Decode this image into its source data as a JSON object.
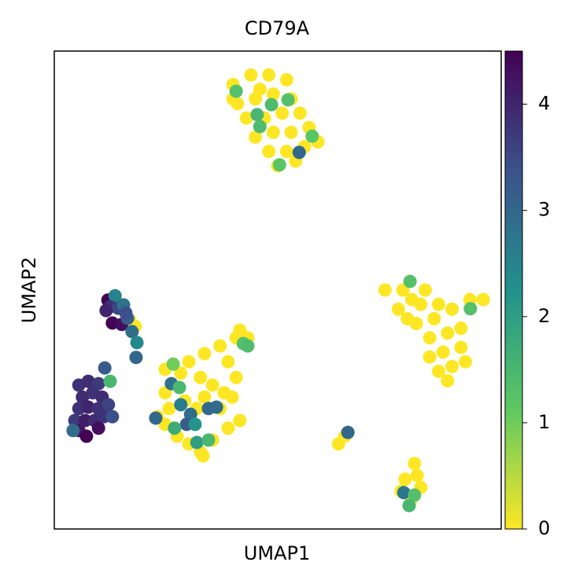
{
  "chart_data": {
    "type": "scatter",
    "title": "CD79A",
    "x_label": "UMAP1",
    "y_label": "UMAP2",
    "xlim": [
      0,
      100
    ],
    "ylim": [
      0,
      100
    ],
    "x": [
      40,
      44,
      48,
      52,
      41,
      45,
      49,
      53,
      43,
      47,
      51,
      55,
      45,
      49,
      53,
      57,
      48,
      52,
      56,
      59,
      50,
      54,
      40,
      46,
      74,
      78,
      82,
      77,
      81,
      85,
      89,
      93,
      96,
      84,
      88,
      87,
      91,
      84,
      89,
      92,
      86,
      80,
      83,
      79,
      86,
      91,
      88,
      18.1,
      16.9,
      24.8,
      30.1,
      33.6,
      37.1,
      40.7,
      43.3,
      38.9,
      40.7,
      38,
      35.4,
      32.7,
      28.3,
      24.8,
      25.7,
      24.8,
      27.5,
      30.1,
      32.7,
      35.4,
      38.9,
      41.5,
      37.1,
      31.9,
      29.2,
      33.6,
      39.8,
      23.1,
      41.5,
      33.3,
      63.6,
      65,
      78.5,
      81.2,
      82,
      79.9,
      77.6,
      80.6,
      40.7,
      45.4,
      48.6,
      52.3,
      46,
      57.7,
      54.8,
      50.4,
      79.6,
      93.1,
      42.3,
      43.3,
      26.6,
      26.2,
      28,
      22.7,
      28.3,
      30.5,
      29.6,
      26.9,
      31.5,
      31.9,
      34.5,
      36.3,
      34.5,
      65.7,
      78.2,
      80.6,
      79.4,
      12,
      13.6,
      12.5,
      14.3,
      15.5,
      13,
      15.1,
      16.4,
      17.4,
      18.5,
      18.3,
      16,
      11.6,
      5.5,
      7.6,
      9.9,
      6.3,
      8.6,
      10.7,
      5.5,
      7.6,
      9.9,
      12.1,
      4.6,
      6.9,
      9,
      11.1,
      5.5,
      4.2,
      9.9,
      13,
      7.2,
      11.3,
      12.5
    ],
    "y": [
      93,
      95,
      95,
      94,
      89,
      90,
      91,
      90,
      86,
      86,
      87,
      87,
      82,
      83,
      83,
      84,
      79,
      79,
      80,
      81,
      76,
      77,
      90,
      92,
      50,
      50,
      47,
      46,
      43,
      44,
      46,
      48,
      48,
      40,
      41,
      37,
      38,
      36,
      34,
      35,
      33,
      48,
      50,
      44,
      47,
      42,
      31,
      42.4,
      43.6,
      33.4,
      35,
      36.7,
      38.3,
      40,
      40,
      35,
      31.7,
      28.5,
      30.1,
      31.7,
      32.6,
      28.5,
      25.2,
      21.9,
      19.4,
      17.8,
      16.1,
      18.6,
      21.1,
      22.7,
      25.2,
      25.2,
      26.8,
      27.6,
      27.6,
      23.5,
      41.6,
      15.3,
      17.8,
      19.4,
      10.4,
      11.2,
      8.7,
      6.3,
      7.9,
      13.7,
      91.6,
      86.7,
      88.8,
      89.8,
      84.2,
      82.2,
      78.8,
      76.2,
      51.8,
      46.1,
      38.8,
      38.3,
      34.5,
      30.4,
      29.6,
      23.2,
      26,
      24,
      21.9,
      21.1,
      21.9,
      18.1,
      25.2,
      25.5,
      18.6,
      20.2,
      7.6,
      7.1,
      4.9,
      47.9,
      48.8,
      46.5,
      46.2,
      46.9,
      43.1,
      42.8,
      44.1,
      41.3,
      39,
      35.9,
      45.2,
      45.7,
      30.1,
      30.9,
      30.4,
      27.6,
      28.5,
      27.6,
      25.2,
      25.5,
      25.2,
      26,
      22.7,
      22.7,
      22.7,
      23.5,
      20.6,
      20.6,
      21.1,
      23.5,
      19.4,
      33.7,
      30.9
    ],
    "values": [
      0,
      0,
      0,
      0,
      0,
      0,
      0,
      0,
      0,
      0,
      0,
      0,
      0,
      0,
      0,
      0,
      0,
      0,
      0,
      0,
      0,
      0,
      0,
      0,
      0,
      0,
      0,
      0,
      0,
      0,
      0,
      0,
      0,
      0,
      0,
      0,
      0,
      0,
      0,
      0,
      0,
      0,
      0,
      0,
      0,
      0,
      0,
      0,
      0,
      0,
      0,
      0,
      0,
      0,
      0,
      0,
      0,
      0,
      0,
      0,
      0,
      0,
      0,
      0,
      0,
      0,
      0,
      0,
      0,
      0,
      0,
      0,
      0,
      0,
      0,
      0,
      0,
      0,
      0,
      0,
      0,
      0,
      0,
      0,
      0,
      0,
      1.3,
      1.5,
      1.4,
      1.3,
      1.4,
      1.2,
      3.0,
      1.2,
      1.3,
      1.3,
      1.3,
      1.4,
      1.0,
      2.8,
      1.5,
      3.0,
      2.6,
      2.9,
      3.2,
      1.7,
      2.2,
      2.0,
      3.0,
      2.9,
      1.5,
      3.0,
      2.7,
      1.3,
      1.5,
      4.5,
      2.5,
      3.8,
      3.5,
      2.8,
      4.5,
      4.3,
      3.2,
      2.9,
      2.4,
      3.0,
      3.4,
      4.0,
      3.8,
      3.9,
      3.7,
      3.9,
      3.8,
      3.9,
      3.8,
      4.0,
      3.8,
      3.6,
      3.7,
      4.1,
      3.9,
      3.8,
      4.2,
      2.9,
      4.3,
      3.4,
      4.5,
      3.2,
      1.5
    ],
    "clim": [
      0,
      4.5
    ],
    "cticks": [
      0,
      1,
      2,
      3,
      4
    ],
    "colormap": [
      "#fde725",
      "#5ec962",
      "#21918c",
      "#3b528b",
      "#440154"
    ]
  }
}
